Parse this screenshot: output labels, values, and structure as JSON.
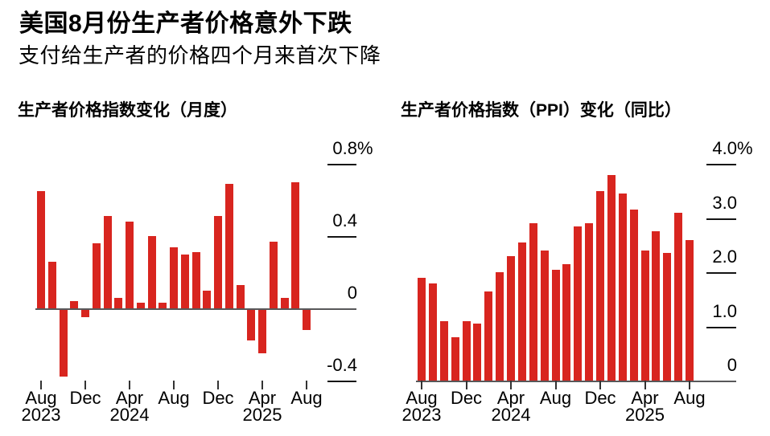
{
  "header": {
    "title": "美国8月份生产者价格意外下跌",
    "subtitle": "支付给生产者的价格四个月来首次下降"
  },
  "colors": {
    "bar_red": "#d8251f",
    "axis_line": "#58585a",
    "tick_dash": "#141414",
    "text": "#000000",
    "background": "#ffffff"
  },
  "chart_data": [
    {
      "id": "ppi-monthly",
      "type": "bar",
      "title": "生产者价格指数变化（月度）",
      "unit": "%",
      "grid": false,
      "ylim": [
        -0.5,
        0.8
      ],
      "bar_color": "#d8251f",
      "categories": [
        "Aug 2023",
        "Sep 2023",
        "Oct 2023",
        "Nov 2023",
        "Dec 2023",
        "Jan 2024",
        "Feb 2024",
        "Mar 2024",
        "Apr 2024",
        "May 2024",
        "Jun 2024",
        "Jul 2024",
        "Aug 2024",
        "Sep 2024",
        "Oct 2024",
        "Nov 2024",
        "Dec 2024",
        "Jan 2025",
        "Feb 2025",
        "Mar 2025",
        "Apr 2025",
        "May 2025",
        "Jun 2025",
        "Jul 2025",
        "Aug 2025"
      ],
      "values": [
        0.65,
        0.26,
        -0.37,
        0.04,
        -0.04,
        0.36,
        0.51,
        0.06,
        0.48,
        0.03,
        0.4,
        0.03,
        0.34,
        0.3,
        0.31,
        0.1,
        0.51,
        0.69,
        0.13,
        -0.17,
        -0.24,
        0.37,
        0.06,
        0.7,
        -0.11
      ],
      "y_ticks": [
        {
          "label": "0.8%",
          "value": 0.8
        },
        {
          "label": "0.4",
          "value": 0.4
        },
        {
          "label": "0",
          "value": 0
        },
        {
          "label": "-0.4",
          "value": -0.4
        }
      ],
      "x_ticks": [
        {
          "label": "Aug",
          "year": "2023",
          "index": 0
        },
        {
          "label": "Dec",
          "year": "",
          "index": 4
        },
        {
          "label": "Apr",
          "year": "2024",
          "index": 8
        },
        {
          "label": "Aug",
          "year": "",
          "index": 12
        },
        {
          "label": "Dec",
          "year": "",
          "index": 16
        },
        {
          "label": "Apr",
          "year": "2025",
          "index": 20
        },
        {
          "label": "Aug",
          "year": "",
          "index": 24
        }
      ]
    },
    {
      "id": "ppi-yoy",
      "type": "bar",
      "title": "生产者价格指数（PPI）变化（同比）",
      "unit": "%",
      "grid": false,
      "ylim": [
        0,
        4.0
      ],
      "bar_color": "#d8251f",
      "categories": [
        "Aug 2023",
        "Sep 2023",
        "Oct 2023",
        "Nov 2023",
        "Dec 2023",
        "Jan 2024",
        "Feb 2024",
        "Mar 2024",
        "Apr 2024",
        "May 2024",
        "Jun 2024",
        "Jul 2024",
        "Aug 2024",
        "Sep 2024",
        "Oct 2024",
        "Nov 2024",
        "Dec 2024",
        "Jan 2025",
        "Feb 2025",
        "Mar 2025",
        "Apr 2025",
        "May 2025",
        "Jun 2025",
        "Jul 2025",
        "Aug 2025"
      ],
      "values": [
        1.9,
        1.8,
        1.1,
        0.8,
        1.1,
        1.05,
        1.65,
        2.0,
        2.3,
        2.55,
        2.9,
        2.4,
        2.05,
        2.15,
        2.85,
        2.9,
        3.5,
        3.8,
        3.45,
        3.15,
        2.4,
        2.75,
        2.35,
        3.1,
        2.6
      ],
      "y_ticks": [
        {
          "label": "4.0%",
          "value": 4.0
        },
        {
          "label": "3.0",
          "value": 3.0
        },
        {
          "label": "2.0",
          "value": 2.0
        },
        {
          "label": "1.0",
          "value": 1.0
        },
        {
          "label": "0",
          "value": 0
        }
      ],
      "x_ticks": [
        {
          "label": "Aug",
          "year": "2023",
          "index": 0
        },
        {
          "label": "Dec",
          "year": "",
          "index": 4
        },
        {
          "label": "Apr",
          "year": "2024",
          "index": 8
        },
        {
          "label": "Aug",
          "year": "",
          "index": 12
        },
        {
          "label": "Dec",
          "year": "",
          "index": 16
        },
        {
          "label": "Apr",
          "year": "2025",
          "index": 20
        },
        {
          "label": "Aug",
          "year": "",
          "index": 24
        }
      ]
    }
  ]
}
